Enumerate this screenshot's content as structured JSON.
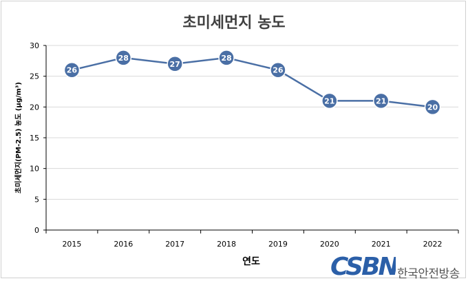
{
  "chart_data": {
    "type": "line",
    "title": "초미세먼지 농도",
    "xlabel": "연도",
    "ylabel": "초미세먼지(PM-2.5) 농도 (μg/m³)",
    "categories": [
      "2015",
      "2016",
      "2017",
      "2018",
      "2019",
      "2020",
      "2021",
      "2022"
    ],
    "values": [
      26,
      28,
      27,
      28,
      26,
      21,
      21,
      20
    ],
    "ylim": [
      0,
      30
    ],
    "yticks": [
      0,
      5,
      10,
      15,
      20,
      25,
      30
    ],
    "grid": true,
    "line_color": "#4a6fa5",
    "marker_color": "#4a6fa5"
  },
  "watermark": {
    "logo": "CSBN",
    "name": "한국안전방송"
  }
}
